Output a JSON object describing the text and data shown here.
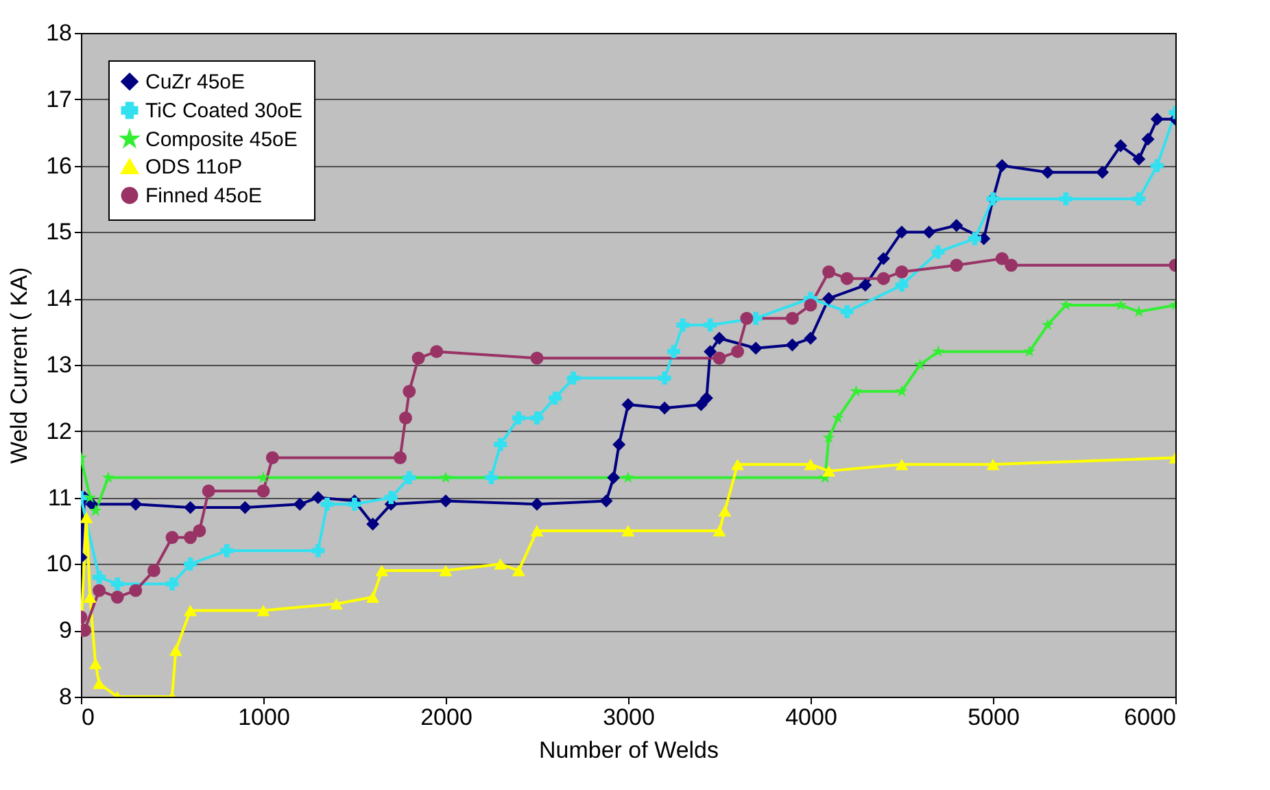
{
  "chart_data": {
    "type": "line",
    "xlabel": "Number of Welds",
    "ylabel": "Weld Current ( KA)",
    "xlim": [
      0,
      6000
    ],
    "xticks": [
      0,
      1000,
      2000,
      3000,
      4000,
      5000,
      6000
    ],
    "ylim": [
      8,
      18
    ],
    "yticks": [
      8,
      9,
      10,
      11,
      12,
      13,
      14,
      15,
      16,
      17,
      18
    ],
    "grid": "y",
    "legend": "top left",
    "line_style": "solid",
    "series": [
      {
        "name": "CuZr 45oE",
        "color": "#000080",
        "marker": "diamond",
        "x": [
          0,
          20,
          60,
          300,
          600,
          900,
          1200,
          1300,
          1500,
          1600,
          1700,
          2000,
          2500,
          2880,
          2920,
          2950,
          3000,
          3200,
          3400,
          3430,
          3450,
          3500,
          3700,
          3900,
          4000,
          4100,
          4300,
          4400,
          4500,
          4650,
          4800,
          4950,
          5000,
          5050,
          5300,
          5600,
          5700,
          5800,
          5850,
          5900,
          6000
        ],
        "values": [
          10.1,
          11.0,
          10.9,
          10.9,
          10.85,
          10.85,
          10.9,
          11.0,
          10.95,
          10.6,
          10.9,
          10.95,
          10.9,
          10.95,
          11.3,
          11.8,
          12.4,
          12.35,
          12.4,
          12.5,
          13.2,
          13.4,
          13.25,
          13.3,
          13.4,
          14.0,
          14.2,
          14.6,
          15.0,
          15.0,
          15.1,
          14.9,
          15.5,
          16.0,
          15.9,
          15.9,
          16.3,
          16.1,
          16.4,
          16.7,
          16.7
        ]
      },
      {
        "name": "TiC Coated 30oE",
        "color": "#33e0f0",
        "marker": "cross",
        "x": [
          0,
          100,
          200,
          500,
          600,
          800,
          1300,
          1350,
          1500,
          1700,
          1800,
          2250,
          2300,
          2400,
          2500,
          2600,
          2700,
          3200,
          3250,
          3300,
          3450,
          3700,
          4000,
          4200,
          4500,
          4700,
          4900,
          5000,
          5400,
          5800,
          5900,
          6000
        ],
        "values": [
          11.0,
          9.8,
          9.7,
          9.7,
          10.0,
          10.2,
          10.2,
          10.9,
          10.9,
          11.0,
          11.3,
          11.3,
          11.8,
          12.2,
          12.2,
          12.5,
          12.8,
          12.8,
          13.2,
          13.6,
          13.6,
          13.7,
          14.0,
          13.8,
          14.2,
          14.7,
          14.9,
          15.5,
          15.5,
          15.5,
          16.0,
          16.8
        ]
      },
      {
        "name": "Composite 45oE",
        "color": "#33ee33",
        "marker": "star",
        "x": [
          0,
          50,
          80,
          150,
          1000,
          2000,
          3000,
          4080,
          4100,
          4150,
          4250,
          4500,
          4600,
          4700,
          5200,
          5300,
          5400,
          5700,
          5800,
          6000
        ],
        "values": [
          11.6,
          11.0,
          10.8,
          11.3,
          11.3,
          11.3,
          11.3,
          11.3,
          11.9,
          12.2,
          12.6,
          12.6,
          13.0,
          13.2,
          13.2,
          13.6,
          13.9,
          13.9,
          13.8,
          13.9
        ]
      },
      {
        "name": "ODS 11oP",
        "color": "#ffff00",
        "marker": "triangle",
        "x": [
          0,
          30,
          50,
          80,
          100,
          200,
          500,
          520,
          600,
          1000,
          1400,
          1600,
          1650,
          2000,
          2300,
          2400,
          2500,
          3000,
          3500,
          3530,
          3600,
          4000,
          4100,
          4500,
          5000,
          6000
        ],
        "values": [
          9.0,
          10.7,
          9.5,
          8.5,
          8.2,
          8.0,
          8.0,
          8.7,
          9.3,
          9.3,
          9.4,
          9.5,
          9.9,
          9.9,
          10.0,
          9.9,
          10.5,
          10.5,
          10.5,
          10.8,
          11.5,
          11.5,
          11.4,
          11.5,
          11.5,
          11.6
        ]
      },
      {
        "name": "Finned 45oE",
        "color": "#993366",
        "marker": "circle",
        "x": [
          0,
          20,
          100,
          200,
          300,
          400,
          500,
          600,
          650,
          700,
          1000,
          1050,
          1750,
          1780,
          1800,
          1850,
          1950,
          2500,
          3500,
          3600,
          3650,
          3900,
          4000,
          4100,
          4200,
          4400,
          4500,
          4800,
          5050,
          5100,
          6000
        ],
        "values": [
          9.2,
          9.0,
          9.6,
          9.5,
          9.6,
          9.9,
          10.4,
          10.4,
          10.5,
          11.1,
          11.1,
          11.6,
          11.6,
          12.2,
          12.6,
          13.1,
          13.2,
          13.1,
          13.1,
          13.2,
          13.7,
          13.7,
          13.9,
          14.4,
          14.3,
          14.3,
          14.4,
          14.5,
          14.6,
          14.5,
          14.5
        ]
      }
    ]
  }
}
